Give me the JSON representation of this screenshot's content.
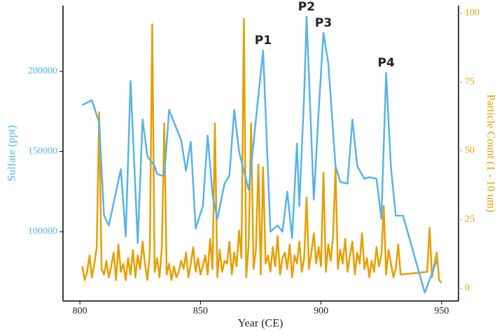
{
  "chart_data": {
    "type": "line",
    "x_label": "Year (CE)",
    "y_label": "Sulfate (ppt)",
    "y2_label": "Particle Count (1 - 10 um)",
    "xlim": [
      793,
      957
    ],
    "xticks": [
      800,
      850,
      900,
      950
    ],
    "ylim": [
      56800,
      241000
    ],
    "yticks": [
      100000,
      150000,
      200000
    ],
    "y2lim": [
      -4.6,
      102.8
    ],
    "y2ticks": [
      0,
      25,
      50,
      75,
      100
    ],
    "annotations": [
      "P1",
      "P2",
      "P3",
      "P4"
    ],
    "series": [
      {
        "name": "Sulfate (ppt)",
        "color": "#56b4e9",
        "x": [
          801,
          805,
          808,
          810,
          812,
          817,
          819,
          821,
          824,
          826,
          828,
          831,
          832,
          834,
          835,
          837,
          842,
          844,
          846,
          848,
          851,
          853,
          855,
          857,
          860,
          862,
          864,
          866,
          870,
          873,
          876,
          879,
          882,
          884,
          886,
          888,
          890,
          891,
          893,
          894,
          897,
          899,
          901,
          903,
          906,
          908,
          911,
          913,
          915,
          918,
          920,
          923,
          925,
          927,
          929,
          931,
          934,
          943,
          948
        ],
        "values": [
          179000,
          182000,
          168000,
          110000,
          104000,
          139000,
          97000,
          194000,
          93000,
          170000,
          147000,
          141000,
          136000,
          135000,
          135000,
          176000,
          157000,
          138000,
          156000,
          102000,
          116000,
          160000,
          123000,
          108000,
          130000,
          135000,
          176000,
          150000,
          126000,
          170000,
          213000,
          100000,
          104000,
          100000,
          125000,
          96000,
          155000,
          116000,
          185000,
          234000,
          120000,
          175000,
          224000,
          205000,
          141000,
          131000,
          130000,
          170000,
          141000,
          133000,
          134000,
          133000,
          108000,
          199000,
          140000,
          110000,
          110000,
          62000,
          82000
        ]
      },
      {
        "name": "Particle Count (1 - 10 um)",
        "color": "#e69f00",
        "axis": "y2",
        "x": [
          801,
          802,
          803,
          804,
          805,
          806,
          807,
          808,
          809,
          810,
          811,
          812,
          813,
          814,
          815,
          816,
          817,
          818,
          819,
          820,
          821,
          822,
          823,
          824,
          825,
          826,
          827,
          828,
          829,
          830,
          831,
          832,
          833,
          834,
          835,
          836,
          837,
          838,
          839,
          840,
          841,
          842,
          843,
          844,
          845,
          846,
          847,
          848,
          849,
          850,
          851,
          852,
          853,
          854,
          855,
          856,
          857,
          858,
          859,
          860,
          861,
          862,
          863,
          864,
          865,
          866,
          867,
          868,
          869,
          870,
          871,
          872,
          873,
          874,
          875,
          876,
          877,
          878,
          879,
          880,
          881,
          882,
          883,
          884,
          885,
          886,
          887,
          888,
          889,
          890,
          891,
          892,
          893,
          894,
          895,
          896,
          897,
          898,
          899,
          900,
          901,
          902,
          903,
          904,
          905,
          906,
          907,
          908,
          909,
          910,
          911,
          912,
          913,
          914,
          915,
          916,
          917,
          918,
          919,
          920,
          921,
          922,
          923,
          924,
          925,
          926,
          927,
          928,
          929,
          930,
          931,
          932,
          933,
          944,
          945,
          946,
          947,
          948,
          949,
          950
        ],
        "values": [
          8,
          3,
          6,
          12,
          4,
          9,
          15,
          64,
          7,
          5,
          10,
          4,
          8,
          13,
          3,
          16,
          6,
          9,
          3,
          11,
          5,
          14,
          4,
          12,
          7,
          17,
          9,
          3,
          13,
          96,
          6,
          11,
          4,
          15,
          60,
          5,
          9,
          3,
          8,
          4,
          6,
          10,
          7,
          13,
          4,
          9,
          15,
          6,
          11,
          5,
          8,
          12,
          5,
          18,
          7,
          60,
          4,
          14,
          6,
          10,
          9,
          17,
          5,
          13,
          8,
          21,
          11,
          98,
          4,
          16,
          60,
          7,
          14,
          45,
          5,
          44,
          9,
          12,
          6,
          15,
          8,
          19,
          5,
          11,
          13,
          7,
          16,
          4,
          12,
          9,
          17,
          6,
          11,
          33,
          7,
          13,
          20,
          9,
          15,
          8,
          42,
          6,
          16,
          10,
          19,
          44,
          7,
          14,
          9,
          18,
          6,
          12,
          17,
          5,
          13,
          9,
          20,
          7,
          11,
          4,
          10,
          6,
          15,
          8,
          12,
          30,
          5,
          14,
          9,
          4,
          7,
          16,
          5,
          6,
          22,
          4,
          9,
          13,
          3,
          2
        ]
      }
    ]
  }
}
